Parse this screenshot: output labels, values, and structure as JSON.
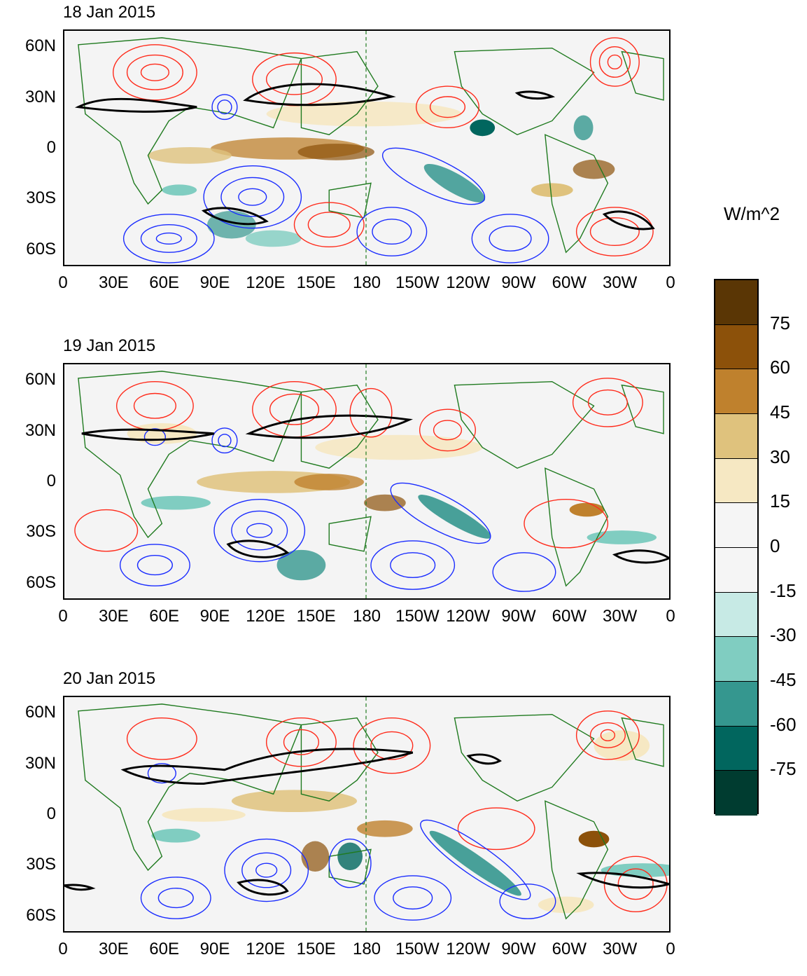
{
  "panels": [
    {
      "title": "18 Jan 2015"
    },
    {
      "title": "19 Jan 2015"
    },
    {
      "title": "20 Jan 2015"
    }
  ],
  "lon_labels": [
    "0",
    "30E",
    "60E",
    "90E",
    "120E",
    "150E",
    "180",
    "150W",
    "120W",
    "90W",
    "60W",
    "30W",
    "0"
  ],
  "lat_labels": [
    "60N",
    "30N",
    "0",
    "30S",
    "60S"
  ],
  "colorbar": {
    "unit": "W/m^2",
    "labels": [
      "75",
      "60",
      "45",
      "30",
      "15",
      "0",
      "-15",
      "-30",
      "-45",
      "-60",
      "-75"
    ],
    "colors": [
      "#5a3605",
      "#8c510a",
      "#bf812d",
      "#dfc27d",
      "#f6e8c3",
      "#f5f5f5",
      "#f5f5f5",
      "#c7eae5",
      "#80cdc1",
      "#35978f",
      "#01665e",
      "#003c30"
    ]
  },
  "map_style": {
    "coast_color": "#1f7a1f",
    "positive_contour_color": "#ff2a1a",
    "negative_contour_color": "#1a2cff",
    "thick_contour_color": "#000000",
    "dateline_color": "#1f7a1f"
  }
}
